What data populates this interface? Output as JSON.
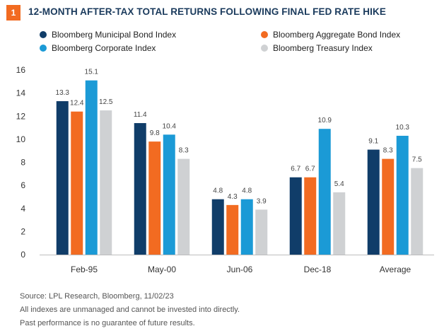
{
  "figure": {
    "number": "1",
    "title": "12-MONTH AFTER-TAX TOTAL RETURNS FOLLOWING FINAL FED RATE HIKE"
  },
  "chart_data": {
    "type": "bar",
    "title": "12-MONTH AFTER-TAX TOTAL RETURNS FOLLOWING FINAL FED RATE HIKE",
    "categories": [
      "Feb-95",
      "May-00",
      "Jun-06",
      "Dec-18",
      "Average"
    ],
    "series": [
      {
        "name": "Bloomberg Municipal Bond Index",
        "color": "#103d69",
        "values": [
          13.3,
          11.4,
          4.8,
          6.7,
          9.1
        ]
      },
      {
        "name": "Bloomberg Aggregate Bond Index",
        "color": "#f26b21",
        "values": [
          12.4,
          9.8,
          4.3,
          6.7,
          8.3
        ]
      },
      {
        "name": "Bloomberg Corporate Index",
        "color": "#1b9ad6",
        "values": [
          15.1,
          10.4,
          4.8,
          10.9,
          10.3
        ]
      },
      {
        "name": "Bloomberg Treasury Index",
        "color": "#cfd1d3",
        "values": [
          12.5,
          8.3,
          3.9,
          5.4,
          7.5
        ]
      }
    ],
    "ylim": [
      0,
      16
    ],
    "yticks": [
      0,
      2,
      4,
      6,
      8,
      10,
      12,
      14,
      16
    ],
    "xlabel": "",
    "ylabel": "",
    "grid": false,
    "legend": "top"
  },
  "notes": {
    "source": "Source: LPL Research, Bloomberg,  11/02/23",
    "line2": "All indexes are unmanaged and cannot be invested into directly.",
    "line3": "Past performance is no guarantee of future results."
  }
}
